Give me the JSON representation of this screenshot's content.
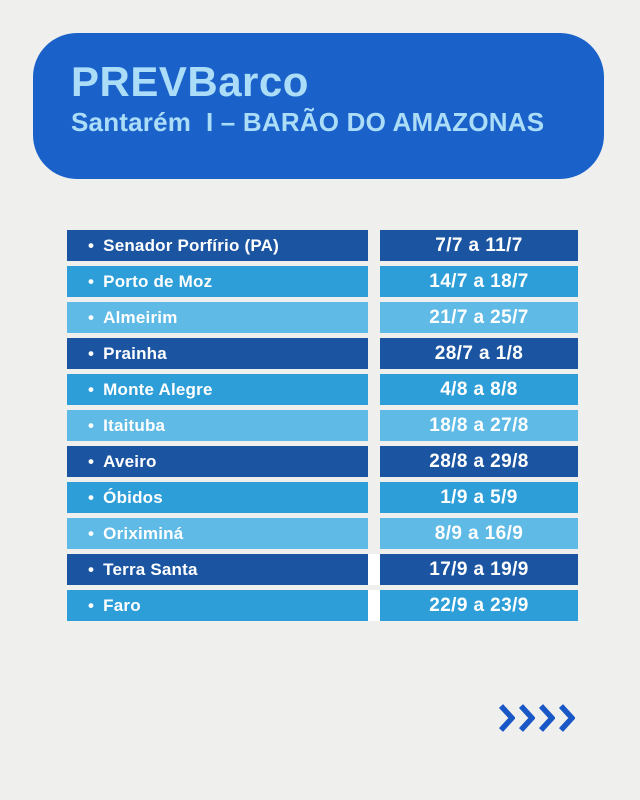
{
  "colors": {
    "page_bg": "#efefed",
    "header_bg": "#1a62ca",
    "header_text": "#abddf8",
    "row_dark": "#1b55a1",
    "row_medium": "#2d9ed8",
    "row_light": "#5fbae6",
    "row_text": "#ffffff",
    "gap_highlight": "#ffffff",
    "chevron": "#1956c6"
  },
  "header": {
    "title": "PREVBarco",
    "subtitle": "Santarém  I – BARÃO DO AMAZONAS"
  },
  "table": {
    "bullet": "•",
    "rows": [
      {
        "name": "Senador Porfírio (PA)",
        "dates": "7/7 a 11/7",
        "shade": "dark"
      },
      {
        "name": "Porto de Moz",
        "dates": "14/7 a 18/7",
        "shade": "medium"
      },
      {
        "name": "Almeirim",
        "dates": "21/7 a 25/7",
        "shade": "light"
      },
      {
        "name": "Prainha",
        "dates": "28/7 a 1/8",
        "shade": "dark"
      },
      {
        "name": "Monte Alegre",
        "dates": "4/8 a 8/8",
        "shade": "medium"
      },
      {
        "name": "Itaituba",
        "dates": "18/8 a 27/8",
        "shade": "light"
      },
      {
        "name": "Aveiro",
        "dates": "28/8 a 29/8",
        "shade": "dark"
      },
      {
        "name": "Óbidos",
        "dates": "1/9 a 5/9",
        "shade": "medium"
      },
      {
        "name": "Oriximiná",
        "dates": "8/9 a 16/9",
        "shade": "light"
      },
      {
        "name": "Terra Santa",
        "dates": "17/9 a 19/9",
        "shade": "dark",
        "gap_white": true
      },
      {
        "name": "Faro",
        "dates": "22/9 a 23/9",
        "shade": "medium",
        "gap_white": true
      }
    ]
  },
  "footer": {
    "arrows_icon": "chevrons-right",
    "arrow_count": 4
  }
}
